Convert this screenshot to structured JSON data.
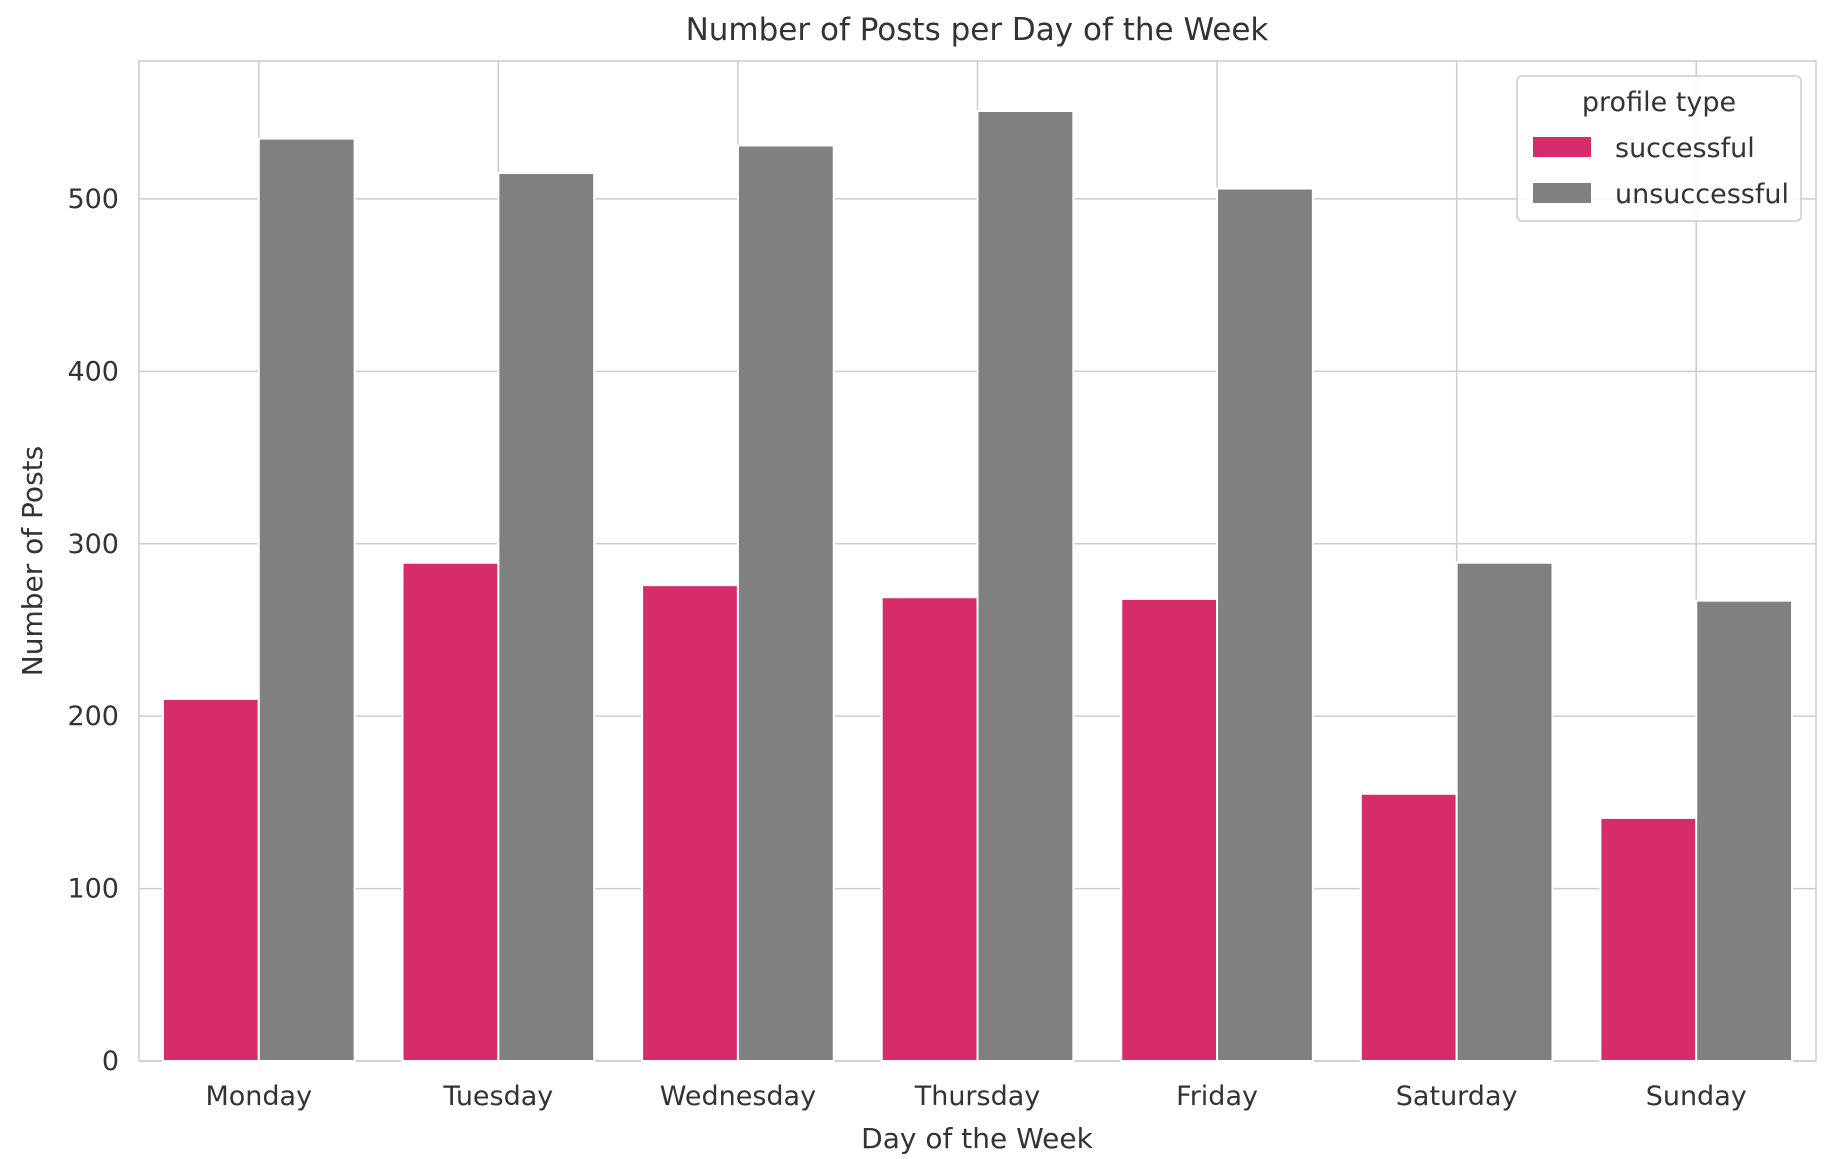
{
  "chart_data": {
    "type": "bar",
    "title": "Number of Posts per Day of the Week",
    "xlabel": "Day of the Week",
    "ylabel": "Number of Posts",
    "categories": [
      "Monday",
      "Tuesday",
      "Wednesday",
      "Thursday",
      "Friday",
      "Saturday",
      "Sunday"
    ],
    "series": [
      {
        "name": "successful",
        "color": "#d62d6a",
        "values": [
          210,
          289,
          276,
          269,
          268,
          155,
          141
        ]
      },
      {
        "name": "unsuccessful",
        "color": "#808080",
        "values": [
          535,
          515,
          531,
          551,
          506,
          289,
          267
        ]
      }
    ],
    "ylim": [
      0,
      580
    ],
    "yticks": [
      0,
      100,
      200,
      300,
      400,
      500
    ],
    "grid": true,
    "legend": {
      "title": "profile type",
      "position": "top-right"
    }
  }
}
